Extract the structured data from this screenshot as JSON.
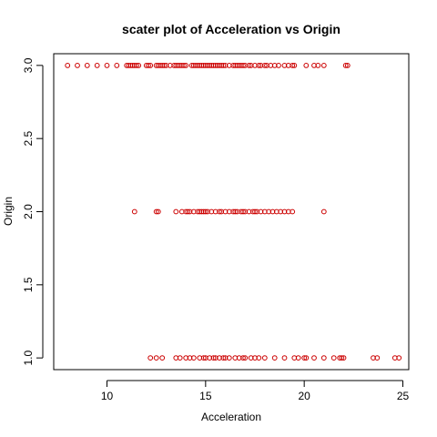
{
  "chart_data": {
    "type": "scatter",
    "title": "scater plot of Acceleration vs Origin",
    "xlabel": "Acceleration",
    "ylabel": "Origin",
    "xlim": [
      7.3,
      25.3
    ],
    "ylim": [
      0.92,
      3.08
    ],
    "xticks": [
      10,
      15,
      20,
      25
    ],
    "xtick_labels": [
      "10",
      "15",
      "20",
      "25"
    ],
    "yticks": [
      1.0,
      1.5,
      2.0,
      2.5,
      3.0
    ],
    "ytick_labels": [
      "1.0",
      "1.5",
      "2.0",
      "2.5",
      "3.0"
    ],
    "grid": false,
    "legend": "none",
    "point_color": "#cc0000",
    "marker": "open-circle",
    "series": [
      {
        "x": [
          8.0,
          8.5,
          9.0,
          9.5,
          10.0,
          10.5,
          11.0,
          11.1,
          11.2,
          11.3,
          11.4,
          11.5,
          11.6,
          12.0,
          12.1,
          12.2,
          12.5,
          12.6,
          12.7,
          12.8,
          12.9,
          13.0,
          13.2,
          13.4,
          13.5,
          13.6,
          13.7,
          13.8,
          13.9,
          14.0,
          14.3,
          14.4,
          14.5,
          14.6,
          14.7,
          14.8,
          14.9,
          15.0,
          15.1,
          15.2,
          15.3,
          15.4,
          15.5,
          15.6,
          15.7,
          15.8,
          15.9,
          16.0,
          16.2,
          16.4,
          16.5,
          16.6,
          16.7,
          16.8,
          16.9,
          17.0,
          17.2,
          17.3,
          17.5,
          17.7,
          17.8,
          18.0,
          18.1,
          18.3,
          18.5,
          18.7,
          19.0,
          19.2,
          19.4,
          19.5,
          20.1,
          20.5,
          20.7,
          21.0,
          22.1,
          22.2
        ],
        "y": [
          3,
          3,
          3,
          3,
          3,
          3,
          3,
          3,
          3,
          3,
          3,
          3,
          3,
          3,
          3,
          3,
          3,
          3,
          3,
          3,
          3,
          3,
          3,
          3,
          3,
          3,
          3,
          3,
          3,
          3,
          3,
          3,
          3,
          3,
          3,
          3,
          3,
          3,
          3,
          3,
          3,
          3,
          3,
          3,
          3,
          3,
          3,
          3,
          3,
          3,
          3,
          3,
          3,
          3,
          3,
          3,
          3,
          3,
          3,
          3,
          3,
          3,
          3,
          3,
          3,
          3,
          3,
          3,
          3,
          3,
          3,
          3,
          3,
          3,
          3,
          3
        ]
      },
      {
        "x": [
          11.4,
          12.5,
          12.6,
          13.5,
          13.8,
          14.0,
          14.1,
          14.2,
          14.4,
          14.6,
          14.7,
          14.8,
          14.9,
          15.0,
          15.1,
          15.3,
          15.5,
          15.7,
          15.8,
          16.0,
          16.2,
          16.4,
          16.5,
          16.6,
          16.8,
          16.9,
          17.0,
          17.2,
          17.4,
          17.5,
          17.6,
          17.8,
          18.0,
          18.2,
          18.4,
          18.6,
          18.8,
          19.0,
          19.2,
          19.4,
          21.0
        ],
        "y": [
          2,
          2,
          2,
          2,
          2,
          2,
          2,
          2,
          2,
          2,
          2,
          2,
          2,
          2,
          2,
          2,
          2,
          2,
          2,
          2,
          2,
          2,
          2,
          2,
          2,
          2,
          2,
          2,
          2,
          2,
          2,
          2,
          2,
          2,
          2,
          2,
          2,
          2,
          2,
          2,
          2
        ]
      },
      {
        "x": [
          12.2,
          12.5,
          12.8,
          13.5,
          13.7,
          14.0,
          14.2,
          14.4,
          14.7,
          14.9,
          15.0,
          15.2,
          15.4,
          15.5,
          15.7,
          15.9,
          16.0,
          16.2,
          16.5,
          16.7,
          16.9,
          17.0,
          17.3,
          17.5,
          17.7,
          18.0,
          18.5,
          19.0,
          19.5,
          19.7,
          20.0,
          20.1,
          20.5,
          21.0,
          21.5,
          21.8,
          21.9,
          22.0,
          23.5,
          23.7,
          24.6,
          24.8
        ],
        "y": [
          1,
          1,
          1,
          1,
          1,
          1,
          1,
          1,
          1,
          1,
          1,
          1,
          1,
          1,
          1,
          1,
          1,
          1,
          1,
          1,
          1,
          1,
          1,
          1,
          1,
          1,
          1,
          1,
          1,
          1,
          1,
          1,
          1,
          1,
          1,
          1,
          1,
          1,
          1,
          1,
          1,
          1
        ]
      }
    ]
  }
}
